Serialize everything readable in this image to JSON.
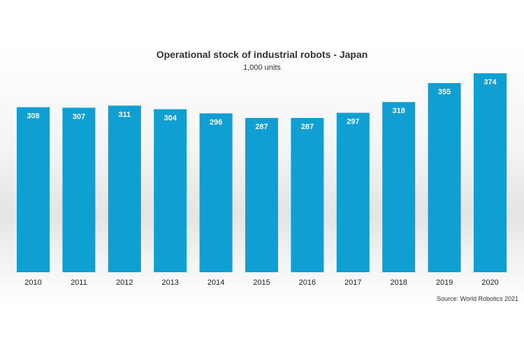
{
  "chart_data": {
    "type": "bar",
    "title": "Operational stock of industrial robots - Japan",
    "subtitle": "1,000 units",
    "categories": [
      "2010",
      "2011",
      "2012",
      "2013",
      "2014",
      "2015",
      "2016",
      "2017",
      "2018",
      "2019",
      "2020"
    ],
    "values": [
      308,
      307,
      311,
      304,
      296,
      287,
      287,
      297,
      318,
      355,
      374
    ],
    "ylim": [
      0,
      374
    ],
    "grid": false,
    "legend": "none",
    "source": "Source: World Robotics 2021",
    "bar_color": "#109fd3",
    "label_color": "#ffffff"
  }
}
